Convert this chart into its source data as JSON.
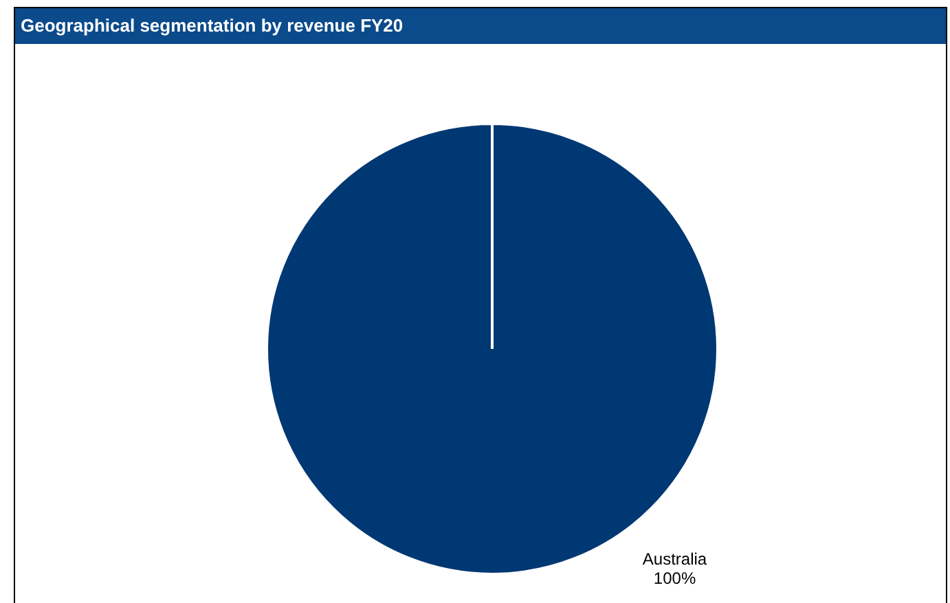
{
  "chart_data": {
    "type": "pie",
    "title": "Geographical segmentation by revenue FY20",
    "categories": [
      "Australia"
    ],
    "values": [
      100
    ],
    "colors": [
      "#003873"
    ],
    "value_labels": [
      "100%"
    ],
    "legend": false
  }
}
